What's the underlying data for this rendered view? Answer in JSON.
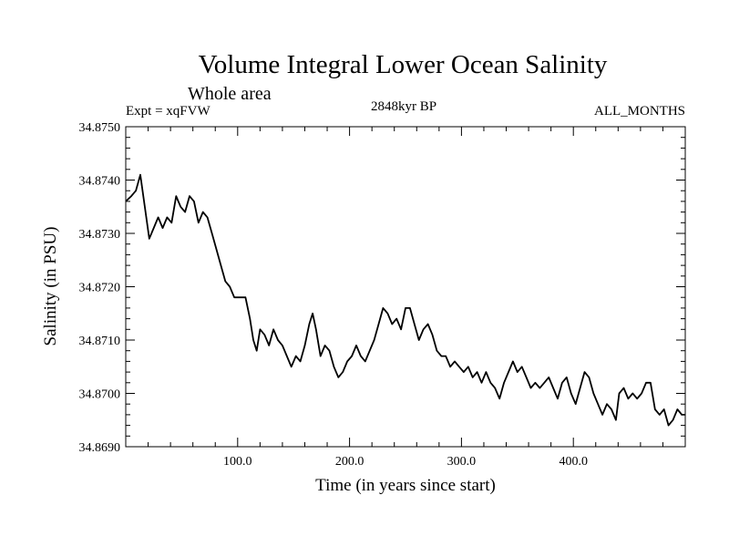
{
  "chart_data": {
    "type": "line",
    "title": "Volume Integral Lower Ocean Salinity",
    "subtitle": "Whole area",
    "experiment_label": "Expt = xqFVW",
    "period_label": "2848kyr BP",
    "months_label": "ALL_MONTHS",
    "xlabel": "Time (in years since start)",
    "ylabel": "Salinity (in PSU)",
    "xlim": [
      0,
      500
    ],
    "ylim": [
      34.869,
      34.875
    ],
    "x_ticks": [
      {
        "value": 100,
        "label": "100.0"
      },
      {
        "value": 200,
        "label": "200.0"
      },
      {
        "value": 300,
        "label": "300.0"
      },
      {
        "value": 400,
        "label": "400.0"
      }
    ],
    "y_ticks": [
      {
        "value": 34.869,
        "label": "34.8690"
      },
      {
        "value": 34.87,
        "label": "34.8700"
      },
      {
        "value": 34.871,
        "label": "34.8710"
      },
      {
        "value": 34.872,
        "label": "34.8720"
      },
      {
        "value": 34.873,
        "label": "34.8730"
      },
      {
        "value": 34.874,
        "label": "34.8740"
      },
      {
        "value": 34.875,
        "label": "34.8750"
      }
    ],
    "grid": false,
    "series": [
      {
        "name": "salinity",
        "color": "#000000",
        "points": [
          [
            0,
            34.8736
          ],
          [
            5,
            34.8737
          ],
          [
            9,
            34.8738
          ],
          [
            13,
            34.8741
          ],
          [
            17,
            34.8735
          ],
          [
            21,
            34.8729
          ],
          [
            25,
            34.8731
          ],
          [
            29,
            34.8733
          ],
          [
            33,
            34.8731
          ],
          [
            37,
            34.8733
          ],
          [
            41,
            34.8732
          ],
          [
            45,
            34.8737
          ],
          [
            49,
            34.8735
          ],
          [
            53,
            34.8734
          ],
          [
            57,
            34.8737
          ],
          [
            61,
            34.8736
          ],
          [
            65,
            34.8732
          ],
          [
            69,
            34.8734
          ],
          [
            73,
            34.8733
          ],
          [
            77,
            34.873
          ],
          [
            81,
            34.8727
          ],
          [
            85,
            34.8724
          ],
          [
            89,
            34.8721
          ],
          [
            93,
            34.872
          ],
          [
            97,
            34.8718
          ],
          [
            102,
            34.8718
          ],
          [
            107,
            34.8718
          ],
          [
            111,
            34.8714
          ],
          [
            114,
            34.871
          ],
          [
            117,
            34.8708
          ],
          [
            120,
            34.8712
          ],
          [
            124,
            34.8711
          ],
          [
            128,
            34.8709
          ],
          [
            132,
            34.8712
          ],
          [
            136,
            34.871
          ],
          [
            140,
            34.8709
          ],
          [
            144,
            34.8707
          ],
          [
            148,
            34.8705
          ],
          [
            152,
            34.8707
          ],
          [
            156,
            34.8706
          ],
          [
            160,
            34.8709
          ],
          [
            164,
            34.8713
          ],
          [
            167,
            34.8715
          ],
          [
            170,
            34.8712
          ],
          [
            174,
            34.8707
          ],
          [
            178,
            34.8709
          ],
          [
            182,
            34.8708
          ],
          [
            186,
            34.8705
          ],
          [
            190,
            34.8703
          ],
          [
            194,
            34.8704
          ],
          [
            198,
            34.8706
          ],
          [
            202,
            34.8707
          ],
          [
            206,
            34.8709
          ],
          [
            210,
            34.8707
          ],
          [
            214,
            34.8706
          ],
          [
            218,
            34.8708
          ],
          [
            222,
            34.871
          ],
          [
            226,
            34.8713
          ],
          [
            230,
            34.8716
          ],
          [
            234,
            34.8715
          ],
          [
            238,
            34.8713
          ],
          [
            242,
            34.8714
          ],
          [
            246,
            34.8712
          ],
          [
            250,
            34.8716
          ],
          [
            254,
            34.8716
          ],
          [
            258,
            34.8713
          ],
          [
            262,
            34.871
          ],
          [
            266,
            34.8712
          ],
          [
            270,
            34.8713
          ],
          [
            274,
            34.8711
          ],
          [
            278,
            34.8708
          ],
          [
            282,
            34.8707
          ],
          [
            286,
            34.8707
          ],
          [
            290,
            34.8705
          ],
          [
            294,
            34.8706
          ],
          [
            298,
            34.8705
          ],
          [
            302,
            34.8704
          ],
          [
            306,
            34.8705
          ],
          [
            310,
            34.8703
          ],
          [
            314,
            34.8704
          ],
          [
            318,
            34.8702
          ],
          [
            322,
            34.8704
          ],
          [
            326,
            34.8702
          ],
          [
            330,
            34.8701
          ],
          [
            334,
            34.8699
          ],
          [
            338,
            34.8702
          ],
          [
            342,
            34.8704
          ],
          [
            346,
            34.8706
          ],
          [
            350,
            34.8704
          ],
          [
            354,
            34.8705
          ],
          [
            358,
            34.8703
          ],
          [
            362,
            34.8701
          ],
          [
            366,
            34.8702
          ],
          [
            370,
            34.8701
          ],
          [
            374,
            34.8702
          ],
          [
            378,
            34.8703
          ],
          [
            382,
            34.8701
          ],
          [
            386,
            34.8699
          ],
          [
            390,
            34.8702
          ],
          [
            394,
            34.8703
          ],
          [
            398,
            34.87
          ],
          [
            402,
            34.8698
          ],
          [
            406,
            34.8701
          ],
          [
            410,
            34.8704
          ],
          [
            414,
            34.8703
          ],
          [
            418,
            34.87
          ],
          [
            422,
            34.8698
          ],
          [
            426,
            34.8696
          ],
          [
            430,
            34.8698
          ],
          [
            434,
            34.8697
          ],
          [
            438,
            34.8695
          ],
          [
            441,
            34.87
          ],
          [
            445,
            34.8701
          ],
          [
            449,
            34.8699
          ],
          [
            453,
            34.87
          ],
          [
            457,
            34.8699
          ],
          [
            461,
            34.87
          ],
          [
            465,
            34.8702
          ],
          [
            469,
            34.8702
          ],
          [
            473,
            34.8697
          ],
          [
            477,
            34.8696
          ],
          [
            481,
            34.8697
          ],
          [
            485,
            34.8694
          ],
          [
            489,
            34.8695
          ],
          [
            493,
            34.8697
          ],
          [
            497,
            34.8696
          ],
          [
            500,
            34.8696
          ]
        ]
      }
    ]
  }
}
